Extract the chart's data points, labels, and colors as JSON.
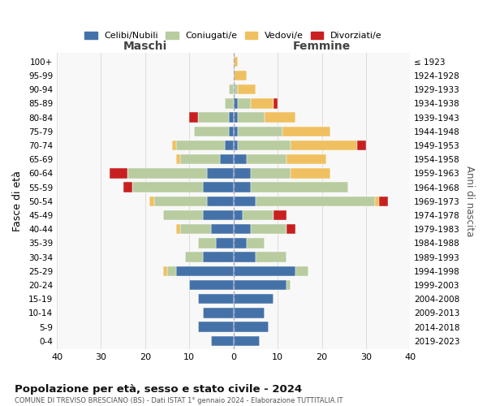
{
  "age_groups": [
    "100+",
    "95-99",
    "90-94",
    "85-89",
    "80-84",
    "75-79",
    "70-74",
    "65-69",
    "60-64",
    "55-59",
    "50-54",
    "45-49",
    "40-44",
    "35-39",
    "30-34",
    "25-29",
    "20-24",
    "15-19",
    "10-14",
    "5-9",
    "0-4"
  ],
  "birth_years": [
    "≤ 1923",
    "1924-1928",
    "1929-1933",
    "1934-1938",
    "1939-1943",
    "1944-1948",
    "1949-1953",
    "1954-1958",
    "1959-1963",
    "1964-1968",
    "1969-1973",
    "1974-1978",
    "1979-1983",
    "1984-1988",
    "1989-1993",
    "1994-1998",
    "1999-2003",
    "2004-2008",
    "2009-2013",
    "2014-2018",
    "2019-2023"
  ],
  "colors": {
    "celibi": "#4472a8",
    "coniugati": "#b8cca0",
    "vedovi": "#f0c060",
    "divorziati": "#c82020"
  },
  "maschi": {
    "celibi": [
      0,
      0,
      0,
      0,
      1,
      1,
      2,
      3,
      6,
      7,
      6,
      7,
      5,
      4,
      7,
      13,
      10,
      8,
      7,
      8,
      5
    ],
    "coniugati": [
      0,
      0,
      1,
      2,
      7,
      8,
      11,
      9,
      18,
      16,
      12,
      9,
      7,
      4,
      4,
      2,
      0,
      0,
      0,
      0,
      0
    ],
    "vedovi": [
      0,
      0,
      0,
      0,
      0,
      0,
      1,
      1,
      0,
      0,
      1,
      0,
      1,
      0,
      0,
      1,
      0,
      0,
      0,
      0,
      0
    ],
    "divorziati": [
      0,
      0,
      0,
      0,
      2,
      0,
      0,
      0,
      4,
      2,
      0,
      0,
      0,
      0,
      0,
      0,
      0,
      0,
      0,
      0,
      0
    ]
  },
  "femmine": {
    "celibi": [
      0,
      0,
      0,
      1,
      1,
      1,
      1,
      3,
      4,
      4,
      5,
      2,
      4,
      3,
      5,
      14,
      12,
      9,
      7,
      8,
      6
    ],
    "coniugati": [
      0,
      0,
      1,
      3,
      6,
      10,
      12,
      9,
      9,
      22,
      27,
      7,
      8,
      4,
      7,
      3,
      1,
      0,
      0,
      0,
      0
    ],
    "vedovi": [
      1,
      3,
      4,
      5,
      7,
      11,
      15,
      9,
      9,
      0,
      1,
      0,
      0,
      0,
      0,
      0,
      0,
      0,
      0,
      0,
      0
    ],
    "divorziati": [
      0,
      0,
      0,
      1,
      0,
      0,
      2,
      0,
      0,
      0,
      2,
      3,
      2,
      0,
      0,
      0,
      0,
      0,
      0,
      0,
      0
    ]
  },
  "xlim": 40,
  "title": "Popolazione per età, sesso e stato civile - 2024",
  "subtitle": "COMUNE DI TREVISO BRESCIANO (BS) - Dati ISTAT 1° gennaio 2024 - Elaborazione TUTTITALIA.IT",
  "ylabel": "Fasce di età",
  "ylabel_right": "Anni di nascita",
  "xlabel_left": "Maschi",
  "xlabel_right": "Femmine"
}
